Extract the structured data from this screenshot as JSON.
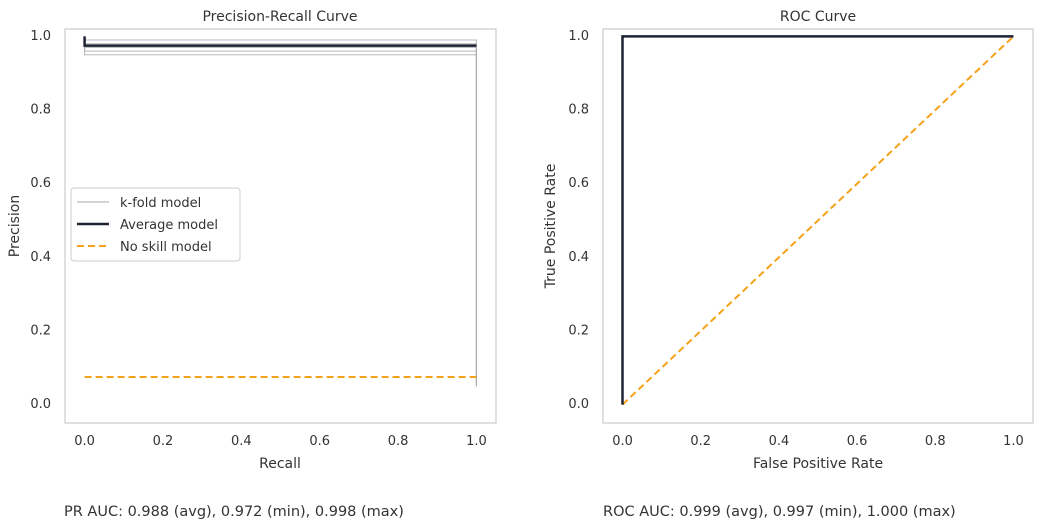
{
  "colors": {
    "background": "#ffffff",
    "frame": "#cccccc",
    "text": "#333333",
    "kfold": "#aaaaaa",
    "average": "#1c2333",
    "no_skill": "#f5a21b"
  },
  "chart_data": [
    {
      "type": "line",
      "title": "Precision-Recall Curve",
      "xlabel": "Recall",
      "ylabel": "Precision",
      "xlim": [
        -0.05,
        1.05
      ],
      "ylim": [
        -0.05,
        1.02
      ],
      "xticks": [
        "0.0",
        "0.2",
        "0.4",
        "0.6",
        "0.8",
        "1.0"
      ],
      "yticks": [
        "0.0",
        "0.2",
        "0.4",
        "0.6",
        "0.8",
        "1.0"
      ],
      "grid": false,
      "legend": {
        "position": "center-left",
        "entries": [
          "k-fold model",
          "Average model",
          "No skill model"
        ]
      },
      "series": [
        {
          "name": "k-fold model",
          "x": [
            0.0,
            0.0,
            1.0,
            1.0
          ],
          "y": [
            1.0,
            0.95,
            0.95,
            0.05
          ]
        },
        {
          "name": "k-fold model",
          "x": [
            0.0,
            0.0,
            1.0,
            1.0
          ],
          "y": [
            1.0,
            0.96,
            0.96,
            0.05
          ]
        },
        {
          "name": "k-fold model",
          "x": [
            0.0,
            0.0,
            1.0,
            1.0
          ],
          "y": [
            1.0,
            0.97,
            0.97,
            0.05
          ]
        },
        {
          "name": "k-fold model",
          "x": [
            0.0,
            0.0,
            1.0,
            1.0
          ],
          "y": [
            1.0,
            0.98,
            0.98,
            0.05
          ]
        },
        {
          "name": "k-fold model",
          "x": [
            0.0,
            0.0,
            1.0,
            1.0
          ],
          "y": [
            1.0,
            0.99,
            0.99,
            0.05
          ]
        },
        {
          "name": "Average model",
          "x": [
            0.0,
            0.0,
            1.0
          ],
          "y": [
            1.0,
            0.975,
            0.975
          ]
        },
        {
          "name": "No skill model",
          "x": [
            0.0,
            1.0
          ],
          "y": [
            0.075,
            0.075
          ]
        }
      ],
      "auc_text": "PR AUC: 0.988 (avg), 0.972 (min), 0.998 (max)"
    },
    {
      "type": "line",
      "title": "ROC Curve",
      "xlabel": "False Positive Rate",
      "ylabel": "True Positive Rate",
      "xlim": [
        -0.05,
        1.05
      ],
      "ylim": [
        -0.05,
        1.02
      ],
      "xticks": [
        "0.0",
        "0.2",
        "0.4",
        "0.6",
        "0.8",
        "1.0"
      ],
      "yticks": [
        "0.0",
        "0.2",
        "0.4",
        "0.6",
        "0.8",
        "1.0"
      ],
      "grid": false,
      "series": [
        {
          "name": "k-fold model",
          "x": [
            0.0,
            0.0,
            1.0
          ],
          "y": [
            0.0,
            1.0,
            1.0
          ]
        },
        {
          "name": "Average model",
          "x": [
            0.0,
            0.0,
            1.0
          ],
          "y": [
            0.0,
            1.0,
            1.0
          ]
        },
        {
          "name": "No skill model",
          "x": [
            0.0,
            1.0
          ],
          "y": [
            0.0,
            1.0
          ]
        }
      ],
      "auc_text": "ROC AUC: 0.999 (avg), 0.997 (min), 1.000 (max)"
    }
  ]
}
